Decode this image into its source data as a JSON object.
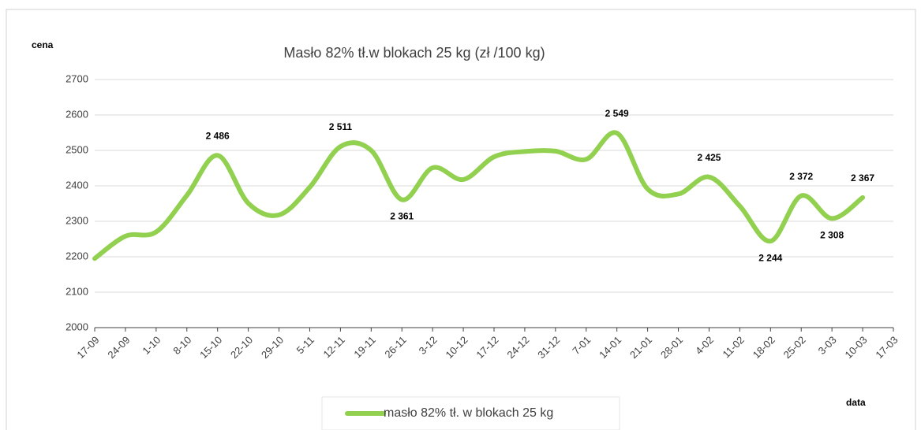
{
  "chart_data": {
    "type": "line",
    "title": "Masło 82% tł.w blokach 25 kg (zł /100 kg)",
    "y_label": "cena",
    "x_label": "data",
    "categories": [
      "17-09",
      "24-09",
      "1-10",
      "8-10",
      "15-10",
      "22-10",
      "29-10",
      "5-11",
      "12-11",
      "19-11",
      "26-11",
      "3-12",
      "10-12",
      "17-12",
      "24-12",
      "31-12",
      "7-01",
      "14-01",
      "21-01",
      "28-01",
      "4-02",
      "11-02",
      "18-02",
      "25-02",
      "3-03",
      "10-03",
      "17-03"
    ],
    "series": [
      {
        "name": "masło 82% tł. w blokach 25 kg",
        "color": "#92d050",
        "values": [
          2195,
          2258,
          2270,
          2373,
          2486,
          2351,
          2318,
          2396,
          2511,
          2500,
          2361,
          2451,
          2418,
          2482,
          2497,
          2498,
          2475,
          2549,
          2391,
          2377,
          2425,
          2343,
          2244,
          2372,
          2308,
          2367,
          null
        ],
        "value_labels": [
          null,
          null,
          null,
          null,
          "2 486",
          null,
          null,
          null,
          "2 511",
          null,
          "2 361",
          null,
          null,
          null,
          null,
          null,
          null,
          "2 549",
          null,
          null,
          "2 425",
          null,
          "2 244",
          "2 372",
          "2 308",
          "2 367",
          null
        ]
      }
    ],
    "ylim": [
      2000,
      2700
    ],
    "yticks": [
      2000,
      2100,
      2200,
      2300,
      2400,
      2500,
      2600,
      2700
    ],
    "grid": true,
    "legend": "bottom"
  }
}
